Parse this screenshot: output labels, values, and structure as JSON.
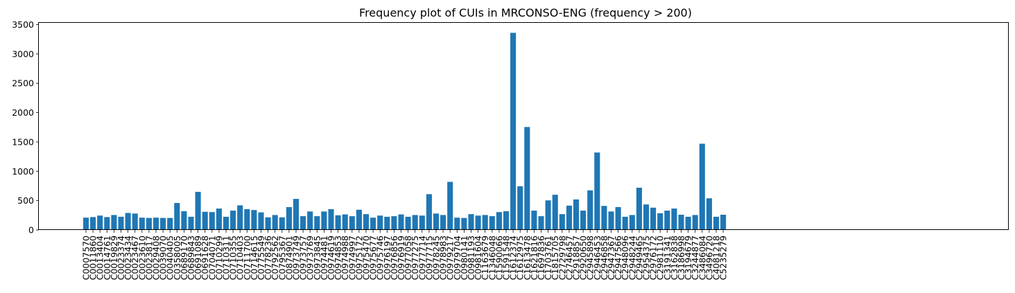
{
  "chart_data": {
    "type": "bar",
    "title": "Frequency plot of CUIs in MRCONSO-ENG (frequency > 200)",
    "xlabel": "",
    "ylabel": "",
    "ylim": [
      0,
      3530
    ],
    "yticks": [
      0,
      500,
      1000,
      1500,
      2000,
      2500,
      3000,
      3500
    ],
    "grid": false,
    "legend": "none",
    "bar_color": "#1f77b4",
    "categories": [
      "C0007570",
      "C0011860",
      "C0013404",
      "C0014761",
      "C0019829",
      "C0023374",
      "C0023434",
      "C0023467",
      "C0023610",
      "C0023817",
      "C0029408",
      "C0039070",
      "C0040405",
      "C0358005",
      "C0689170",
      "C0689843",
      "C0691089",
      "C0691628",
      "C0704071",
      "C0710299",
      "C0710311",
      "C0710355",
      "C0710403",
      "C0711700",
      "C0714615",
      "C0775549",
      "C0778236",
      "C0792562",
      "C0795367",
      "C0874901",
      "C0973749",
      "C0973757",
      "C0973769",
      "C0973845",
      "C0974481",
      "C0974619",
      "C0974853",
      "C0974988",
      "C0974997",
      "C0975172",
      "C0975470",
      "C0975677",
      "C0975746",
      "C0976197",
      "C0976856",
      "C0976919",
      "C0977058",
      "C0977275",
      "C0977714",
      "C0977715",
      "C0978245",
      "C0978983",
      "C0979217",
      "C0979704",
      "C0980141",
      "C0981193",
      "C0981604",
      "C1163679",
      "C1346048",
      "C1590066",
      "C1591548",
      "C1612374",
      "C1612975",
      "C1613478",
      "C1621816",
      "C1697836",
      "C1703761",
      "C1815705",
      "C2729798",
      "C2746457",
      "C2918857",
      "C2920650",
      "C2945898",
      "C2946453",
      "C2946858",
      "C2947367",
      "C2947566",
      "C2948096",
      "C2948244",
      "C2949465",
      "C2954375",
      "C2976172",
      "C2981110",
      "C3191341",
      "C3162838",
      "C3186998",
      "C3194679",
      "C3244877",
      "C3486084",
      "C3496720",
      "C4081218",
      "C5235279"
    ],
    "values": [
      210,
      220,
      245,
      220,
      255,
      225,
      290,
      280,
      210,
      205,
      210,
      205,
      205,
      460,
      320,
      225,
      650,
      310,
      305,
      365,
      225,
      330,
      420,
      355,
      340,
      300,
      215,
      255,
      215,
      390,
      530,
      235,
      315,
      235,
      315,
      355,
      250,
      265,
      235,
      345,
      270,
      210,
      245,
      225,
      235,
      265,
      225,
      255,
      245,
      610,
      280,
      255,
      820,
      210,
      205,
      270,
      245,
      255,
      235,
      305,
      320,
      3360,
      745,
      1755,
      330,
      235,
      505,
      600,
      270,
      415,
      520,
      330,
      675,
      1320,
      410,
      315,
      390,
      225,
      255,
      720,
      435,
      380,
      285,
      330,
      365,
      260,
      225,
      255,
      1470,
      540,
      225,
      260
    ]
  }
}
